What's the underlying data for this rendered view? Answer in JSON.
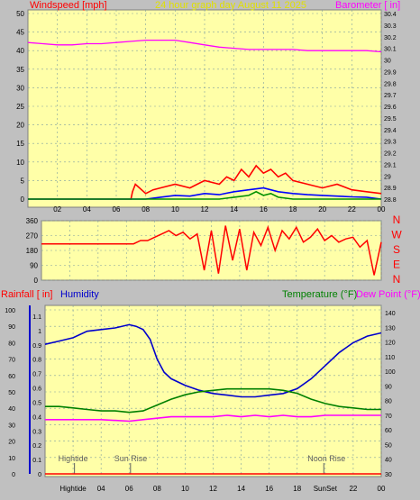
{
  "colors": {
    "background": "#c0c0c0",
    "plot_bg": "#ffffa8",
    "grid": "#80a0a0",
    "wind": "#ff0000",
    "gust_blue": "#0000ff",
    "gust_green": "#009000",
    "barometer": "#ff00ff",
    "direction": "#ff0000",
    "humidity": "#0000cc",
    "temperature": "#008000",
    "dewpoint": "#ff00ff",
    "rain": "#ff0000",
    "sun": "#606060"
  },
  "chart_data": [
    {
      "type": "line",
      "id": "wind-barometer",
      "title": "24 hour graph day    August 11 2025",
      "left_label": "Windspeed [mph]",
      "right_label": "Barometer [ in]",
      "x_ticks": [
        "02",
        "04",
        "06",
        "08",
        "10",
        "12",
        "14",
        "16",
        "18",
        "20",
        "22",
        "00"
      ],
      "y_left_ticks": [
        0,
        5,
        10,
        15,
        20,
        25,
        30,
        35,
        40,
        45,
        50
      ],
      "ylim_left": [
        0,
        50
      ],
      "y_right_ticks": [
        "28.8",
        "28.9",
        "29",
        "29.1",
        "29.2",
        "29.3",
        "29.4",
        "29.5",
        "29.6",
        "29.7",
        "29.8",
        "29.9",
        "30",
        "30.1",
        "30.2",
        "30.3",
        "30.4"
      ],
      "ylim_right": [
        28.8,
        30.4
      ],
      "series": [
        {
          "key": "barometer",
          "axis": "right",
          "x": [
            0,
            1,
            2,
            3,
            4,
            5,
            6,
            7,
            8,
            9,
            10,
            11,
            12,
            13,
            14,
            15,
            16,
            17,
            18,
            19,
            20,
            21,
            22,
            23,
            24
          ],
          "values": [
            30.15,
            30.14,
            30.13,
            30.13,
            30.14,
            30.14,
            30.15,
            30.16,
            30.17,
            30.17,
            30.17,
            30.15,
            30.13,
            30.11,
            30.1,
            30.09,
            30.09,
            30.09,
            30.09,
            30.08,
            30.08,
            30.08,
            30.08,
            30.08,
            30.07
          ]
        },
        {
          "key": "wind",
          "axis": "left",
          "x": [
            0,
            7,
            7.1,
            7.3,
            8,
            8.5,
            9,
            10,
            11,
            12,
            13,
            13.5,
            14,
            14.5,
            15,
            15.5,
            16,
            16.5,
            17,
            17.5,
            18,
            19,
            20,
            21,
            22,
            23,
            24
          ],
          "values": [
            0,
            0,
            2,
            4,
            1.5,
            2.5,
            3,
            4,
            3,
            5,
            4,
            6,
            5,
            8,
            6,
            9,
            7,
            8,
            6,
            7,
            5,
            4,
            3,
            4,
            2.5,
            2,
            1.5
          ]
        },
        {
          "key": "gust_blue",
          "axis": "left",
          "x": [
            0,
            8,
            9,
            10,
            11,
            12,
            13,
            14,
            15,
            16,
            17,
            18,
            19,
            20,
            21,
            22,
            23,
            24
          ],
          "values": [
            0,
            0,
            0.5,
            1,
            0.8,
            1.5,
            1.2,
            2,
            2.5,
            3,
            2,
            1.5,
            1.2,
            1,
            0.8,
            0.6,
            0.5,
            0
          ]
        },
        {
          "key": "gust_green",
          "axis": "left",
          "x": [
            0,
            13,
            14,
            15,
            15.5,
            16,
            16.5,
            17,
            18,
            24
          ],
          "values": [
            0,
            0,
            0.5,
            1,
            2,
            1,
            1.5,
            0.5,
            0,
            0
          ]
        }
      ]
    },
    {
      "type": "line",
      "id": "wind-direction",
      "y_ticks": [
        0,
        90,
        180,
        270,
        360
      ],
      "ylim": [
        0,
        360
      ],
      "compass": [
        "N",
        "W",
        "S",
        "E",
        "N"
      ],
      "series": [
        {
          "key": "direction",
          "x": [
            0,
            6.5,
            7,
            7.5,
            8,
            8.5,
            9,
            9.5,
            10,
            10.5,
            11,
            11.5,
            12,
            12.5,
            13,
            13.5,
            14,
            14.5,
            15,
            15.5,
            16,
            16.5,
            17,
            17.5,
            18,
            18.5,
            19,
            19.5,
            20,
            20.5,
            21,
            21.5,
            22,
            22.5,
            23,
            23.5,
            24
          ],
          "values": [
            220,
            220,
            240,
            240,
            260,
            280,
            300,
            270,
            290,
            250,
            280,
            60,
            300,
            40,
            330,
            120,
            310,
            60,
            290,
            210,
            320,
            180,
            300,
            250,
            320,
            230,
            260,
            310,
            240,
            270,
            230,
            250,
            260,
            200,
            240,
            30,
            230
          ]
        }
      ]
    },
    {
      "type": "line",
      "id": "temp-humidity",
      "labels": {
        "rain": "Rainfall [ in]",
        "humidity": "Humidity",
        "temperature": "Temperature (°F)",
        "dewpoint": "Dew Point (°F)"
      },
      "x_ticks": [
        "Hightide",
        "04",
        "06",
        "08",
        "10",
        "12",
        "14",
        "16",
        "18",
        "SunSet",
        "22",
        "00"
      ],
      "y_humidity_ticks": [
        0,
        10,
        20,
        30,
        40,
        50,
        60,
        70,
        80,
        90,
        100
      ],
      "y_rain_ticks": [
        "0",
        "0.1",
        "0.2",
        "0.3",
        "0.4",
        "0.5",
        "0.6",
        "0.7",
        "0.8",
        "0.9",
        "1",
        "1.1"
      ],
      "y_temp_ticks": [
        30,
        40,
        50,
        60,
        70,
        80,
        90,
        100,
        110,
        120,
        130,
        140
      ],
      "ylim_humidity": [
        0,
        100
      ],
      "ylim_temp": [
        30,
        145
      ],
      "annotations": [
        {
          "label": "Hightide",
          "x": 2.1
        },
        {
          "label": "Sun Rise",
          "x": 6.1
        },
        {
          "label": "Noon Rise",
          "x": 19.9
        }
      ],
      "series": [
        {
          "key": "humidity",
          "x": [
            0,
            1,
            2,
            3,
            4,
            5,
            6,
            6.5,
            7,
            7.5,
            8,
            8.5,
            9,
            10,
            11,
            12,
            13,
            14,
            15,
            16,
            17,
            18,
            19,
            20,
            21,
            22,
            23,
            24
          ],
          "values": [
            79,
            81,
            83,
            87,
            88,
            89,
            91,
            90,
            88,
            82,
            70,
            62,
            58,
            54,
            51,
            49,
            48,
            47,
            47,
            48,
            49,
            52,
            58,
            66,
            74,
            80,
            84,
            86
          ]
        },
        {
          "key": "temperature",
          "x": [
            0,
            1,
            2,
            3,
            4,
            5,
            6,
            7,
            8,
            9,
            10,
            11,
            12,
            13,
            14,
            15,
            16,
            17,
            18,
            19,
            20,
            21,
            22,
            23,
            24
          ],
          "values": [
            76,
            76,
            75,
            74,
            73,
            73,
            72,
            73,
            77,
            81,
            84,
            86,
            87,
            88,
            88,
            88,
            88,
            87,
            85,
            81,
            78,
            76,
            75,
            74,
            74
          ]
        },
        {
          "key": "dewpoint",
          "x": [
            0,
            2,
            4,
            6,
            7,
            8,
            9,
            10,
            11,
            12,
            13,
            14,
            15,
            16,
            17,
            18,
            19,
            20,
            21,
            22,
            23,
            24
          ],
          "values": [
            67,
            67,
            67,
            66,
            67,
            68,
            69,
            69,
            69,
            69,
            70,
            69,
            70,
            69,
            70,
            69,
            69,
            70,
            70,
            70,
            70,
            70
          ]
        },
        {
          "key": "rain",
          "x": [
            0,
            24
          ],
          "values": [
            0,
            0
          ]
        }
      ]
    }
  ]
}
